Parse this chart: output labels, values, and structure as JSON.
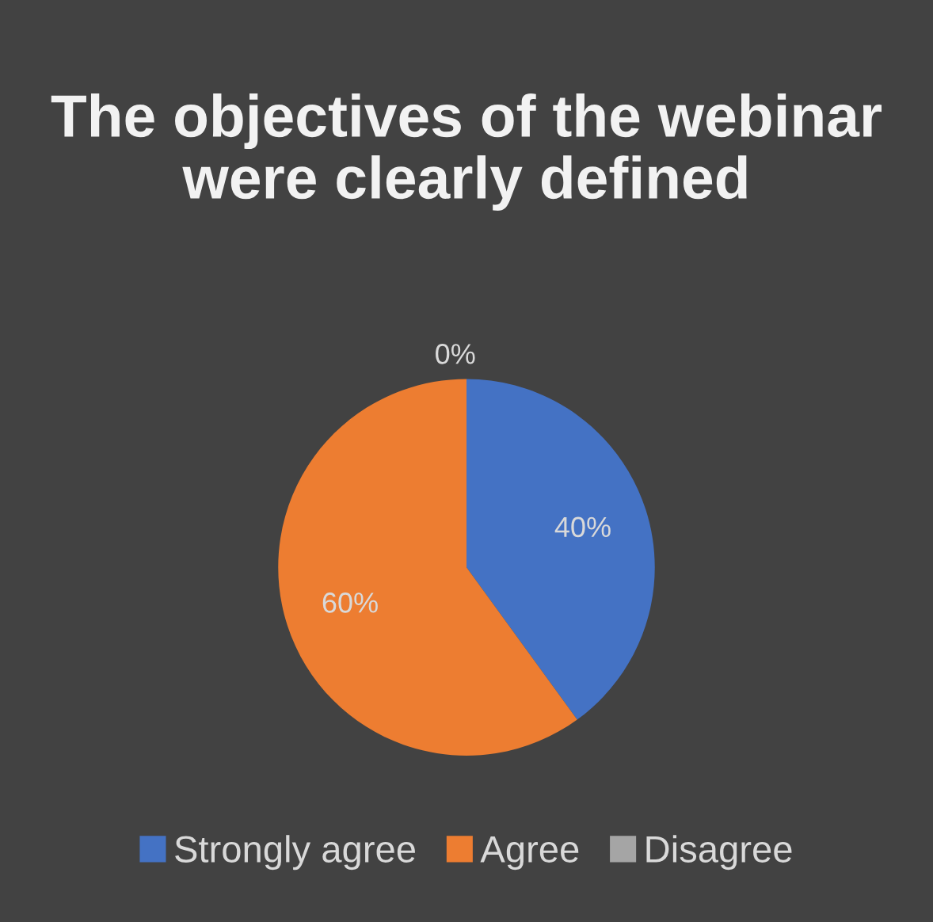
{
  "chart_data": {
    "type": "pie",
    "title": "The objectives of the webinar were clearly defined",
    "categories": [
      "Strongly agree",
      "Agree",
      "Disagree"
    ],
    "values": [
      40,
      60,
      0
    ],
    "colors": [
      "#4472c4",
      "#ed7d31",
      "#a5a5a5"
    ],
    "value_labels": [
      "40%",
      "60%",
      "0%"
    ],
    "legend": "bottom"
  }
}
